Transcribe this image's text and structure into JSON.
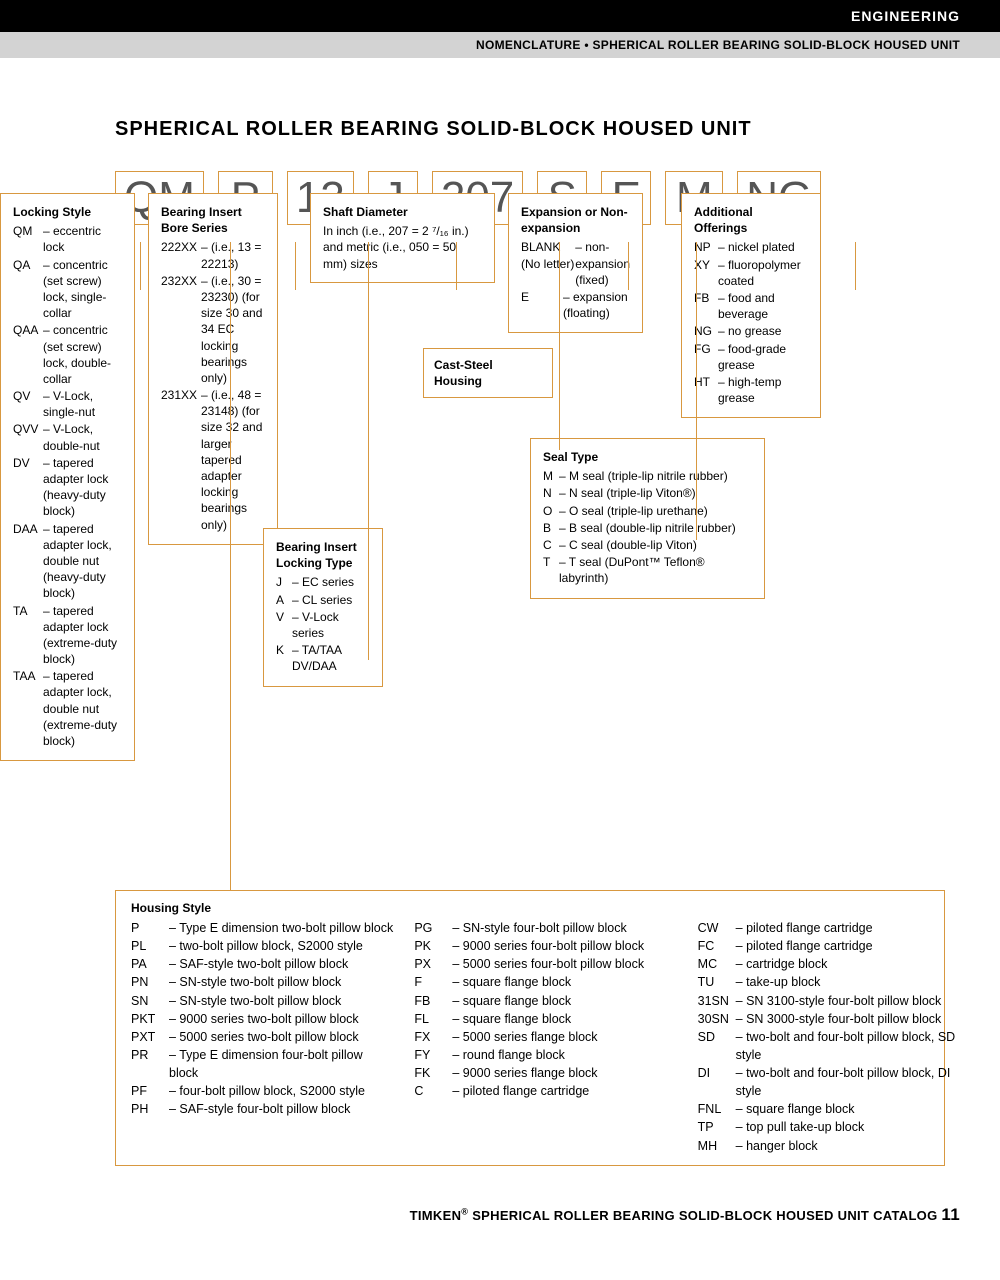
{
  "header": {
    "category": "ENGINEERING",
    "breadcrumb": "NOMENCLATURE • SPHERICAL ROLLER BEARING SOLID-BLOCK HOUSED UNIT"
  },
  "title": "SPHERICAL ROLLER BEARING SOLID-BLOCK HOUSED UNIT",
  "codes": [
    "QM",
    "P",
    "13",
    "J",
    "207",
    "S",
    "E",
    "M",
    "NG"
  ],
  "locking_style": {
    "heading": "Locking Style",
    "items": [
      {
        "c": "QM",
        "d": "eccentric lock"
      },
      {
        "c": "QA",
        "d": "concentric (set screw) lock, single-collar"
      },
      {
        "c": "QAA",
        "d": "concentric (set screw) lock, double-collar"
      },
      {
        "c": "QV",
        "d": "V-Lock, single-nut"
      },
      {
        "c": "QVV",
        "d": "V-Lock, double-nut"
      },
      {
        "c": "DV",
        "d": "tapered adapter lock (heavy-duty block)"
      },
      {
        "c": "DAA",
        "d": "tapered adapter lock, double nut (heavy-duty block)"
      },
      {
        "c": "TA",
        "d": "tapered adapter lock (extreme-duty block)"
      },
      {
        "c": "TAA",
        "d": "tapered adapter lock, double nut (extreme-duty block)"
      }
    ]
  },
  "bore_series": {
    "heading": "Bearing Insert Bore Series",
    "items": [
      {
        "c": "222XX",
        "d": "(i.e., 13 = 22213)"
      },
      {
        "c": "232XX",
        "d": "(i.e., 30 = 23230) (for size 30 and 34 EC locking bearings only)"
      },
      {
        "c": "231XX",
        "d": "(i.e., 48 = 23148) (for size 32 and larger tapered adapter locking bearings only)"
      }
    ]
  },
  "locking_type": {
    "heading": "Bearing Insert Locking Type",
    "items": [
      {
        "c": "J",
        "d": "EC series"
      },
      {
        "c": "A",
        "d": "CL series"
      },
      {
        "c": "V",
        "d": "V-Lock series"
      },
      {
        "c": "K",
        "d": "TA/TAA DV/DAA"
      }
    ]
  },
  "shaft_dia": {
    "heading": "Shaft Diameter",
    "text": "In inch (i.e., 207 = 2 ⁷/₁₆ in.) and metric (i.e., 050 = 50 mm) sizes"
  },
  "cast_steel": {
    "text": "Cast-Steel Housing"
  },
  "expansion": {
    "heading": "Expansion or Non-expansion",
    "items": [
      {
        "c": "BLANK (No letter)",
        "d": "non-expansion (fixed)"
      },
      {
        "c": "E",
        "d": "expansion (floating)"
      }
    ]
  },
  "seal_type": {
    "heading": "Seal Type",
    "items": [
      {
        "c": "M",
        "d": "M seal (triple-lip nitrile rubber)"
      },
      {
        "c": "N",
        "d": "N seal (triple-lip Viton®)"
      },
      {
        "c": "O",
        "d": "O seal (triple-lip urethane)"
      },
      {
        "c": "B",
        "d": "B seal (double-lip nitrile rubber)"
      },
      {
        "c": "C",
        "d": "C seal (double-lip Viton)"
      },
      {
        "c": "T",
        "d": "T seal (DuPont™ Teflon® labyrinth)"
      }
    ]
  },
  "additional": {
    "heading": "Additional Offerings",
    "items": [
      {
        "c": "NP",
        "d": "nickel plated"
      },
      {
        "c": "XY",
        "d": "fluoropolymer coated"
      },
      {
        "c": "FB",
        "d": "food and beverage"
      },
      {
        "c": "NG",
        "d": "no grease"
      },
      {
        "c": "FG",
        "d": "food-grade grease"
      },
      {
        "c": "HT",
        "d": "high-temp grease"
      }
    ]
  },
  "housing_style": {
    "heading": "Housing Style",
    "col1": [
      {
        "c": "P",
        "d": "Type E dimension two-bolt pillow block"
      },
      {
        "c": "PL",
        "d": "two-bolt pillow block, S2000 style"
      },
      {
        "c": "PA",
        "d": "SAF-style two-bolt pillow block"
      },
      {
        "c": "PN",
        "d": "SN-style two-bolt pillow block"
      },
      {
        "c": "SN",
        "d": "SN-style two-bolt pillow block"
      },
      {
        "c": "PKT",
        "d": "9000 series two-bolt pillow block"
      },
      {
        "c": "PXT",
        "d": "5000 series two-bolt pillow block"
      },
      {
        "c": "PR",
        "d": "Type E dimension four-bolt pillow block"
      },
      {
        "c": "PF",
        "d": "four-bolt pillow block, S2000 style"
      },
      {
        "c": "PH",
        "d": "SAF-style four-bolt pillow block"
      }
    ],
    "col2": [
      {
        "c": "PG",
        "d": "SN-style four-bolt pillow block"
      },
      {
        "c": "PK",
        "d": "9000 series four-bolt pillow block"
      },
      {
        "c": "PX",
        "d": "5000 series four-bolt pillow block"
      },
      {
        "c": "F",
        "d": "square flange block"
      },
      {
        "c": "FB",
        "d": "square flange block"
      },
      {
        "c": "FL",
        "d": "square flange block"
      },
      {
        "c": "FX",
        "d": "5000 series flange block"
      },
      {
        "c": "FY",
        "d": "round flange block"
      },
      {
        "c": "FK",
        "d": "9000 series flange block"
      },
      {
        "c": "C",
        "d": "piloted flange cartridge"
      }
    ],
    "col3": [
      {
        "c": "CW",
        "d": "piloted flange cartridge"
      },
      {
        "c": "FC",
        "d": "piloted flange cartridge"
      },
      {
        "c": "MC",
        "d": "cartridge block"
      },
      {
        "c": "TU",
        "d": "take-up block"
      },
      {
        "c": "31SN",
        "d": "SN 3100-style four-bolt pillow block"
      },
      {
        "c": "30SN",
        "d": "SN 3000-style four-bolt pillow block"
      },
      {
        "c": "SD",
        "d": "two-bolt and four-bolt pillow block, SD style"
      },
      {
        "c": "DI",
        "d": "two-bolt and four-bolt pillow block, DI style"
      },
      {
        "c": "FNL",
        "d": "square flange block"
      },
      {
        "c": "TP",
        "d": "top pull take-up block"
      },
      {
        "c": "MH",
        "d": "hanger block"
      }
    ]
  },
  "footer": {
    "text_prefix": "TIMKEN",
    "text_suffix": " SPHERICAL ROLLER BEARING SOLID-BLOCK HOUSED UNIT CATALOG  ",
    "page": "11"
  },
  "styling": {
    "border_color": "#d89840",
    "code_text_color": "#555",
    "black_bar_bg": "#000000",
    "gray_bar_bg": "#d3d3d3",
    "code_fontsize": 44,
    "body_fontsize": 12
  }
}
